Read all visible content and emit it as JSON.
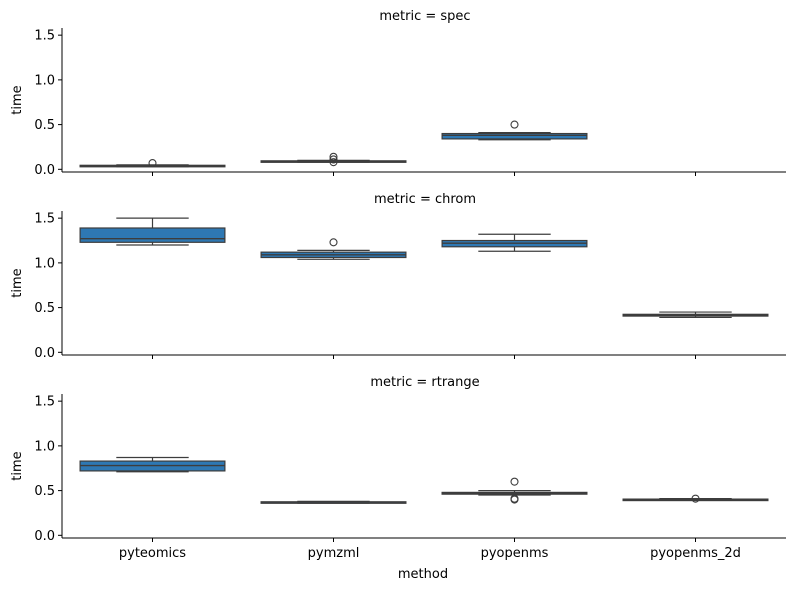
{
  "chart_data": {
    "type": "boxplot",
    "xlabel": "method",
    "ylabel": "time",
    "categories": [
      "pyteomics",
      "pymzml",
      "pyopenms",
      "pyopenms_2d"
    ],
    "ylim": [
      -0.03,
      1.58
    ],
    "yticks": [
      "0.0",
      "0.5",
      "1.0",
      "1.5"
    ],
    "box_color": "#2e78b3",
    "line_color": "#3d3d3d",
    "facets": [
      {
        "title": "metric = spec",
        "boxes": [
          {
            "category": "pyteomics",
            "whislo": 0.03,
            "q1": 0.035,
            "med": 0.04,
            "q3": 0.045,
            "whishi": 0.05,
            "fliers": [
              0.07
            ]
          },
          {
            "category": "pymzml",
            "whislo": 0.08,
            "q1": 0.085,
            "med": 0.09,
            "q3": 0.095,
            "whishi": 0.1,
            "fliers": [
              0.14,
              0.11,
              0.08
            ]
          },
          {
            "category": "pyopenms",
            "whislo": 0.33,
            "q1": 0.34,
            "med": 0.38,
            "q3": 0.4,
            "whishi": 0.41,
            "fliers": [
              0.5
            ]
          }
        ]
      },
      {
        "title": "metric = chrom",
        "boxes": [
          {
            "category": "pyteomics",
            "whislo": 1.2,
            "q1": 1.23,
            "med": 1.27,
            "q3": 1.39,
            "whishi": 1.5,
            "fliers": []
          },
          {
            "category": "pymzml",
            "whislo": 1.04,
            "q1": 1.06,
            "med": 1.09,
            "q3": 1.12,
            "whishi": 1.14,
            "fliers": [
              1.23
            ]
          },
          {
            "category": "pyopenms",
            "whislo": 1.13,
            "q1": 1.18,
            "med": 1.22,
            "q3": 1.25,
            "whishi": 1.32,
            "fliers": []
          },
          {
            "category": "pyopenms_2d",
            "whislo": 0.39,
            "q1": 0.405,
            "med": 0.415,
            "q3": 0.425,
            "whishi": 0.45,
            "fliers": []
          }
        ]
      },
      {
        "title": "metric = rtrange",
        "boxes": [
          {
            "category": "pyteomics",
            "whislo": 0.71,
            "q1": 0.72,
            "med": 0.78,
            "q3": 0.83,
            "whishi": 0.87,
            "fliers": []
          },
          {
            "category": "pymzml",
            "whislo": 0.36,
            "q1": 0.365,
            "med": 0.37,
            "q3": 0.375,
            "whishi": 0.38,
            "fliers": []
          },
          {
            "category": "pyopenms",
            "whislo": 0.45,
            "q1": 0.46,
            "med": 0.47,
            "q3": 0.48,
            "whishi": 0.5,
            "fliers": [
              0.6,
              0.41,
              0.4
            ]
          },
          {
            "category": "pyopenms_2d",
            "whislo": 0.39,
            "q1": 0.395,
            "med": 0.4,
            "q3": 0.405,
            "whishi": 0.41,
            "fliers": [
              0.41
            ]
          }
        ]
      }
    ]
  }
}
